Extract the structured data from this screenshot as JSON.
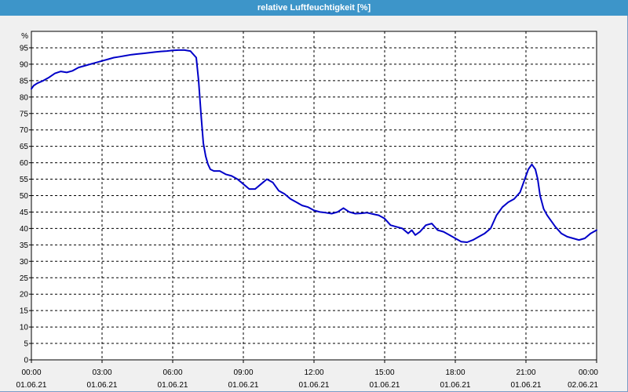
{
  "window": {
    "title": "relative Luftfeuchtigkeit [%]"
  },
  "chart_data": {
    "type": "line",
    "title": "relative Luftfeuchtigkeit [%]",
    "ylabel": "%",
    "xlabel": "",
    "ylim": [
      0,
      100
    ],
    "yticks": [
      0,
      5,
      10,
      15,
      20,
      25,
      30,
      35,
      40,
      45,
      50,
      55,
      60,
      65,
      70,
      75,
      80,
      85,
      90,
      95
    ],
    "xlim_hours": [
      0,
      24
    ],
    "xticks": [
      {
        "time": "00:00",
        "date": "01.06.21"
      },
      {
        "time": "03:00",
        "date": "01.06.21"
      },
      {
        "time": "06:00",
        "date": "01.06.21"
      },
      {
        "time": "09:00",
        "date": "01.06.21"
      },
      {
        "time": "12:00",
        "date": "01.06.21"
      },
      {
        "time": "15:00",
        "date": "01.06.21"
      },
      {
        "time": "18:00",
        "date": "01.06.21"
      },
      {
        "time": "21:00",
        "date": "01.06.21"
      },
      {
        "time": "00:00",
        "date": "02.06.21"
      }
    ],
    "grid": true,
    "line_color": "#0000c8",
    "series": [
      {
        "name": "",
        "x": [
          0.0,
          0.1,
          0.25,
          0.5,
          0.75,
          1.0,
          1.25,
          1.5,
          1.75,
          2.0,
          2.25,
          2.5,
          2.75,
          3.0,
          3.25,
          3.5,
          3.75,
          4.0,
          4.25,
          4.5,
          4.75,
          5.0,
          5.25,
          5.5,
          5.75,
          6.0,
          6.25,
          6.5,
          6.75,
          7.0,
          7.1,
          7.2,
          7.3,
          7.4,
          7.5,
          7.6,
          7.75,
          8.0,
          8.25,
          8.5,
          8.75,
          9.0,
          9.25,
          9.5,
          9.75,
          10.0,
          10.25,
          10.5,
          10.75,
          11.0,
          11.25,
          11.5,
          11.75,
          12.0,
          12.25,
          12.5,
          12.75,
          13.0,
          13.25,
          13.5,
          13.75,
          14.0,
          14.25,
          14.5,
          14.75,
          15.0,
          15.25,
          15.5,
          15.75,
          16.0,
          16.15,
          16.3,
          16.5,
          16.75,
          17.0,
          17.25,
          17.5,
          17.75,
          18.0,
          18.25,
          18.5,
          18.75,
          19.0,
          19.25,
          19.5,
          19.75,
          20.0,
          20.25,
          20.5,
          20.75,
          21.0,
          21.1,
          21.25,
          21.4,
          21.5,
          21.6,
          21.75,
          21.9,
          22.0,
          22.25,
          22.5,
          22.75,
          23.0,
          23.25,
          23.5,
          23.75,
          24.0
        ],
        "y": [
          82.5,
          83.5,
          84.2,
          85.0,
          86.0,
          87.2,
          87.8,
          87.5,
          88.0,
          89.0,
          89.5,
          90.0,
          90.5,
          91.0,
          91.5,
          92.0,
          92.3,
          92.6,
          92.9,
          93.1,
          93.3,
          93.5,
          93.7,
          93.9,
          94.0,
          94.2,
          94.3,
          94.3,
          94.0,
          92.0,
          85.0,
          75.0,
          66.0,
          62.0,
          59.5,
          58.0,
          57.5,
          57.5,
          56.5,
          56.0,
          55.0,
          53.5,
          52.0,
          52.0,
          53.5,
          55.0,
          54.0,
          51.5,
          50.5,
          49.0,
          48.0,
          47.0,
          46.5,
          45.5,
          45.0,
          44.8,
          44.5,
          45.0,
          46.2,
          45.0,
          44.5,
          44.6,
          44.8,
          44.4,
          44.0,
          43.0,
          41.0,
          40.5,
          40.0,
          38.5,
          39.5,
          38.0,
          39.0,
          41.0,
          41.5,
          39.5,
          39.0,
          38.0,
          37.0,
          36.0,
          35.8,
          36.5,
          37.5,
          38.5,
          40.0,
          44.0,
          46.5,
          48.0,
          49.0,
          51.0,
          56.0,
          58.0,
          59.5,
          58.0,
          55.0,
          50.0,
          46.0,
          44.0,
          43.0,
          40.5,
          38.5,
          37.5,
          37.0,
          36.5,
          37.0,
          38.5,
          39.5
        ]
      }
    ]
  }
}
